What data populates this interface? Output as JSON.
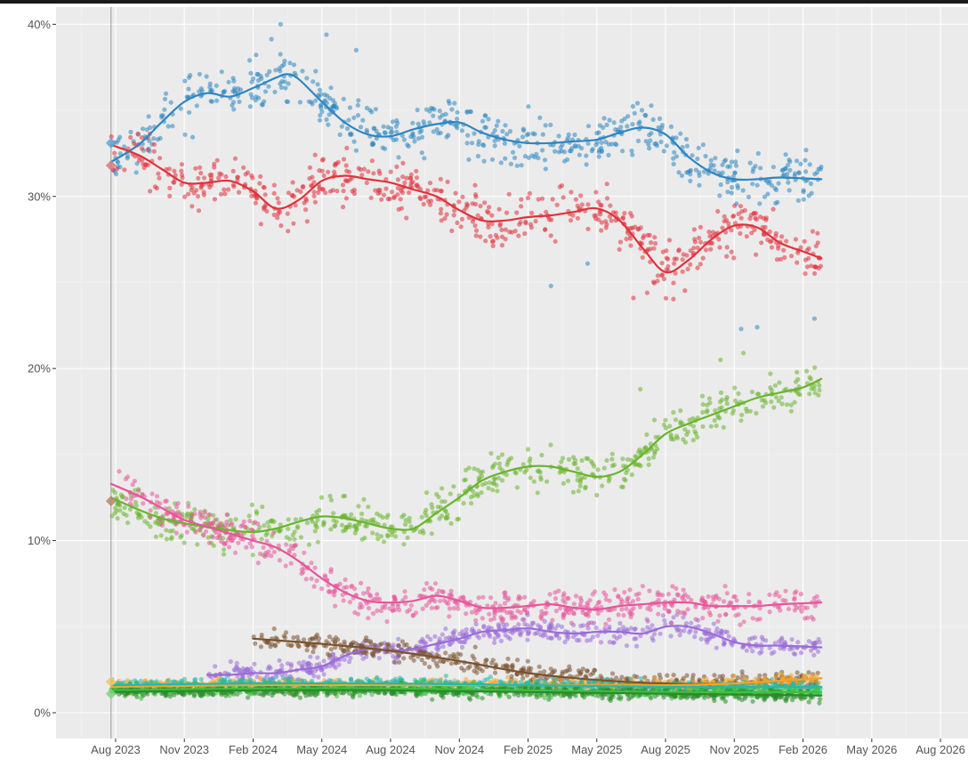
{
  "chart_data": {
    "type": "scatter",
    "title": "",
    "xlabel": "",
    "ylabel": "",
    "x_unit": "months since Jul 2023",
    "xlim": [
      -2.6,
      37.2
    ],
    "ylim": [
      -1.5,
      41
    ],
    "grid": true,
    "legend": "none",
    "background": "#ebebeb",
    "x_ticks": [
      {
        "pos": 0,
        "label": "Aug 2023"
      },
      {
        "pos": 3,
        "label": "Nov 2023"
      },
      {
        "pos": 6,
        "label": "Feb 2024"
      },
      {
        "pos": 9,
        "label": "May 2024"
      },
      {
        "pos": 12,
        "label": "Aug 2024"
      },
      {
        "pos": 15,
        "label": "Nov 2024"
      },
      {
        "pos": 18,
        "label": "Feb 2025"
      },
      {
        "pos": 21,
        "label": "May 2025"
      },
      {
        "pos": 24,
        "label": "Aug 2025"
      },
      {
        "pos": 27,
        "label": "Nov 2025"
      },
      {
        "pos": 30,
        "label": "Feb 2026"
      },
      {
        "pos": 33,
        "label": "May 2026"
      },
      {
        "pos": 36,
        "label": "Aug 2026"
      }
    ],
    "y_ticks": [
      {
        "value": 0,
        "label": "0%"
      },
      {
        "value": 10,
        "label": "10%"
      },
      {
        "value": 20,
        "label": "20%"
      },
      {
        "value": 30,
        "label": "30%"
      },
      {
        "value": 40,
        "label": "40%"
      }
    ],
    "vertical_reference_x": -0.2,
    "series": [
      {
        "name": "blue",
        "color": "#2e86c1",
        "trend": [
          [
            -0.2,
            32.0
          ],
          [
            1,
            33.0
          ],
          [
            2,
            34.3
          ],
          [
            3,
            35.5
          ],
          [
            4,
            36.0
          ],
          [
            5,
            35.8
          ],
          [
            6,
            36.3
          ],
          [
            7,
            36.9
          ],
          [
            7.5,
            37.1
          ],
          [
            8,
            36.8
          ],
          [
            9,
            35.5
          ],
          [
            10,
            34.3
          ],
          [
            11,
            33.6
          ],
          [
            12,
            33.5
          ],
          [
            13,
            33.9
          ],
          [
            14,
            34.2
          ],
          [
            15,
            34.3
          ],
          [
            16,
            33.7
          ],
          [
            17,
            33.3
          ],
          [
            18,
            33.1
          ],
          [
            19,
            33.1
          ],
          [
            20,
            33.2
          ],
          [
            21,
            33.3
          ],
          [
            22,
            33.7
          ],
          [
            23,
            34.0
          ],
          [
            24,
            33.6
          ],
          [
            25,
            32.3
          ],
          [
            26,
            31.4
          ],
          [
            27,
            31.0
          ],
          [
            28,
            31.0
          ],
          [
            29,
            31.1
          ],
          [
            30.8,
            31.0
          ]
        ],
        "spread": 1.3,
        "outliers": [
          [
            7.2,
            40.0
          ],
          [
            9.2,
            39.4
          ],
          [
            10.5,
            38.5
          ],
          [
            27.3,
            22.3
          ],
          [
            28,
            22.4
          ],
          [
            30.5,
            22.9
          ],
          [
            19,
            24.8
          ],
          [
            20.6,
            26.1
          ]
        ]
      },
      {
        "name": "red",
        "color": "#e0323c",
        "trend": [
          [
            -0.2,
            33.0
          ],
          [
            1,
            32.4
          ],
          [
            2,
            31.6
          ],
          [
            3,
            30.8
          ],
          [
            4,
            30.8
          ],
          [
            5,
            30.9
          ],
          [
            6,
            30.3
          ],
          [
            7,
            29.3
          ],
          [
            8,
            29.8
          ],
          [
            9,
            30.9
          ],
          [
            10,
            31.2
          ],
          [
            11,
            31.0
          ],
          [
            12,
            30.8
          ],
          [
            13,
            30.4
          ],
          [
            14,
            30.0
          ],
          [
            15,
            29.2
          ],
          [
            16,
            28.6
          ],
          [
            17,
            28.6
          ],
          [
            18,
            28.8
          ],
          [
            19,
            28.9
          ],
          [
            20,
            29.1
          ],
          [
            21,
            29.3
          ],
          [
            22,
            28.6
          ],
          [
            23,
            27.0
          ],
          [
            24,
            25.6
          ],
          [
            25,
            26.3
          ],
          [
            26,
            27.5
          ],
          [
            27,
            28.3
          ],
          [
            28,
            28.2
          ],
          [
            29,
            27.3
          ],
          [
            30,
            26.8
          ],
          [
            30.8,
            26.4
          ]
        ],
        "spread": 1.2,
        "outliers": [
          [
            22.6,
            24.1
          ],
          [
            23.2,
            24.4
          ]
        ]
      },
      {
        "name": "green",
        "color": "#6ab42d",
        "trend": [
          [
            -0.2,
            12.5
          ],
          [
            1,
            11.8
          ],
          [
            2,
            11.3
          ],
          [
            3,
            11.0
          ],
          [
            4,
            10.8
          ],
          [
            5,
            10.6
          ],
          [
            6,
            10.5
          ],
          [
            7,
            10.7
          ],
          [
            8,
            11.1
          ],
          [
            9,
            11.4
          ],
          [
            10,
            11.3
          ],
          [
            11,
            11.0
          ],
          [
            12,
            10.7
          ],
          [
            13,
            10.7
          ],
          [
            14,
            11.6
          ],
          [
            15,
            12.5
          ],
          [
            16,
            13.5
          ],
          [
            17,
            14.0
          ],
          [
            18,
            14.3
          ],
          [
            19,
            14.3
          ],
          [
            20,
            14.0
          ],
          [
            21,
            13.7
          ],
          [
            22,
            14.0
          ],
          [
            23,
            15.0
          ],
          [
            24,
            16.2
          ],
          [
            25,
            16.8
          ],
          [
            26,
            17.3
          ],
          [
            27,
            17.8
          ],
          [
            28,
            18.3
          ],
          [
            29,
            18.6
          ],
          [
            30,
            18.9
          ],
          [
            30.8,
            19.4
          ]
        ],
        "spread": 1.0,
        "outliers": [
          [
            22.9,
            18.8
          ],
          [
            26.4,
            20.5
          ],
          [
            27.4,
            20.9
          ]
        ]
      },
      {
        "name": "pink",
        "color": "#e8559b",
        "trend": [
          [
            -0.2,
            13.3
          ],
          [
            1,
            12.6
          ],
          [
            2,
            11.9
          ],
          [
            3,
            11.2
          ],
          [
            4,
            10.8
          ],
          [
            5,
            10.4
          ],
          [
            6,
            10.0
          ],
          [
            7,
            9.6
          ],
          [
            8,
            8.8
          ],
          [
            9,
            7.8
          ],
          [
            10,
            7.0
          ],
          [
            11,
            6.5
          ],
          [
            12,
            6.4
          ],
          [
            13,
            6.5
          ],
          [
            14,
            6.8
          ],
          [
            15,
            6.5
          ],
          [
            16,
            6.1
          ],
          [
            17,
            6.1
          ],
          [
            18,
            6.2
          ],
          [
            19,
            6.3
          ],
          [
            20,
            6.1
          ],
          [
            21,
            6.0
          ],
          [
            22,
            6.2
          ],
          [
            23,
            6.3
          ],
          [
            24,
            6.4
          ],
          [
            25,
            6.4
          ],
          [
            26,
            6.2
          ],
          [
            27,
            6.2
          ],
          [
            28,
            6.2
          ],
          [
            29,
            6.3
          ],
          [
            30.8,
            6.4
          ]
        ],
        "spread": 0.8,
        "outliers": []
      },
      {
        "name": "purple",
        "color": "#9b6bd9",
        "trend": [
          [
            4,
            2.2
          ],
          [
            5,
            2.2
          ],
          [
            6,
            2.3
          ],
          [
            7,
            2.3
          ],
          [
            8,
            2.5
          ],
          [
            9,
            2.7
          ],
          [
            10,
            3.3
          ],
          [
            11,
            3.7
          ],
          [
            12,
            3.6
          ],
          [
            13,
            3.7
          ],
          [
            14,
            4.0
          ],
          [
            15,
            4.3
          ],
          [
            16,
            4.7
          ],
          [
            17,
            4.8
          ],
          [
            18,
            4.9
          ],
          [
            19,
            4.7
          ],
          [
            20,
            4.6
          ],
          [
            21,
            4.7
          ],
          [
            22,
            4.7
          ],
          [
            23,
            4.6
          ],
          [
            24,
            5.0
          ],
          [
            25,
            5.0
          ],
          [
            26,
            4.6
          ],
          [
            27,
            4.1
          ],
          [
            28,
            3.9
          ],
          [
            29,
            3.9
          ],
          [
            30.8,
            3.8
          ]
        ],
        "spread": 0.5,
        "outliers": []
      },
      {
        "name": "brown",
        "color": "#7a5230",
        "trend": [
          [
            6,
            4.3
          ],
          [
            9,
            4.0
          ],
          [
            12,
            3.6
          ],
          [
            15,
            3.0
          ],
          [
            18,
            2.3
          ],
          [
            21,
            1.9
          ],
          [
            24,
            1.7
          ],
          [
            27,
            1.7
          ],
          [
            30.8,
            2.0
          ]
        ],
        "spread": 0.5,
        "outliers": []
      },
      {
        "name": "orange",
        "color": "#f2a629",
        "trend": [
          [
            -0.2,
            1.5
          ],
          [
            6,
            1.6
          ],
          [
            12,
            1.6
          ],
          [
            18,
            1.6
          ],
          [
            24,
            1.6
          ],
          [
            27,
            1.7
          ],
          [
            30.8,
            2.0
          ]
        ],
        "spread": 0.3,
        "outliers": []
      },
      {
        "name": "teal",
        "color": "#27b8a8",
        "trend": [
          [
            -0.2,
            1.6
          ],
          [
            6,
            1.7
          ],
          [
            12,
            1.7
          ],
          [
            18,
            1.6
          ],
          [
            24,
            1.5
          ],
          [
            30.8,
            1.5
          ]
        ],
        "spread": 0.3,
        "outliers": []
      },
      {
        "name": "bright-green",
        "color": "#3cc23c",
        "trend": [
          [
            -0.2,
            1.3
          ],
          [
            6,
            1.4
          ],
          [
            12,
            1.4
          ],
          [
            18,
            1.3
          ],
          [
            24,
            1.2
          ],
          [
            30.8,
            1.2
          ]
        ],
        "spread": 0.3,
        "outliers": []
      },
      {
        "name": "dark-green",
        "color": "#2c8a2c",
        "trend": [
          [
            -0.2,
            1.2
          ],
          [
            6,
            1.3
          ],
          [
            12,
            1.3
          ],
          [
            18,
            1.2
          ],
          [
            24,
            1.1
          ],
          [
            30.8,
            1.0
          ]
        ],
        "spread": 0.3,
        "outliers": []
      }
    ],
    "start_markers": [
      {
        "series": "blue",
        "x": -0.2,
        "y": 33.1,
        "color": "#5fa9d9"
      },
      {
        "series": "red",
        "x": -0.2,
        "y": 31.8,
        "color": "#d97a7a"
      },
      {
        "series": "green",
        "x": -0.2,
        "y": 12.3,
        "color": "#b58a6f"
      },
      {
        "series": "bright-green",
        "x": -0.2,
        "y": 1.1,
        "color": "#7fd67f"
      },
      {
        "series": "orange",
        "x": -0.2,
        "y": 1.8,
        "color": "#f2c36b"
      }
    ]
  }
}
